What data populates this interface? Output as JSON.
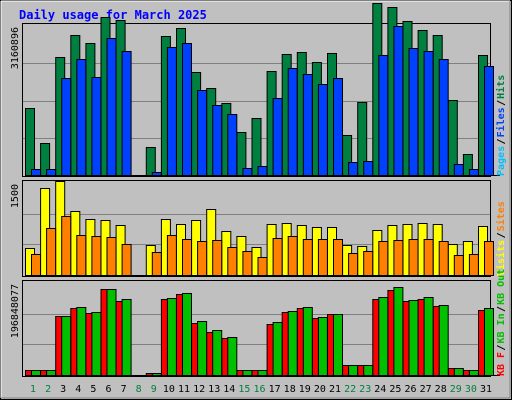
{
  "title": "Daily usage for March 2025",
  "colors": {
    "background": "#C0C0C0",
    "gridline": "#808080",
    "pages": "#00C0FF",
    "files": "#0040FF",
    "hits": "#008040",
    "visits": "#FFFF00",
    "sites": "#FF8000",
    "kb_in": "#00C000",
    "kb_out": "#FF0000",
    "title": "#0000FF",
    "weekday_tick": "#000000",
    "weekend_tick": "#008040"
  },
  "chart_data": [
    {
      "type": "bar",
      "panel": "requests",
      "categories": [
        "1",
        "2",
        "3",
        "4",
        "5",
        "6",
        "7",
        "8",
        "9",
        "10",
        "11",
        "12",
        "13",
        "14",
        "15",
        "16",
        "17",
        "18",
        "19",
        "20",
        "21",
        "22",
        "23",
        "24",
        "25",
        "26",
        "27",
        "28",
        "29",
        "30",
        "31"
      ],
      "weekend_days": [
        "1",
        "2",
        "8",
        "9",
        "15",
        "16",
        "22",
        "23",
        "29",
        "30"
      ],
      "scale_label": "3160896",
      "ymax": 3160896,
      "legend": [
        "Pages",
        "/",
        "Files",
        "/",
        "Hits"
      ],
      "series": [
        {
          "name": "Hits",
          "values": [
            1420000,
            670000,
            2510000,
            2970000,
            2800000,
            3360000,
            3290000,
            0,
            600000,
            2940000,
            3120000,
            2190000,
            1840000,
            1520000,
            920000,
            1200000,
            2200000,
            2560000,
            2600000,
            2400000,
            2580000,
            840000,
            1550000,
            3640000,
            3560000,
            3260000,
            3070000,
            2970000,
            1590000,
            450000,
            2540000
          ]
        },
        {
          "name": "Files",
          "values": [
            120000,
            120000,
            2050000,
            2470000,
            2080000,
            2900000,
            2620000,
            0,
            60000,
            2710000,
            2790000,
            1800000,
            1480000,
            1300000,
            150000,
            190000,
            1630000,
            2260000,
            2140000,
            1940000,
            2060000,
            270000,
            290000,
            2540000,
            3170000,
            2690000,
            2620000,
            2470000,
            230000,
            120000,
            2310000
          ]
        },
        {
          "name": "Pages",
          "values": [
            0,
            0,
            0,
            0,
            0,
            0,
            0,
            0,
            0,
            0,
            0,
            0,
            0,
            0,
            0,
            0,
            0,
            0,
            0,
            0,
            0,
            0,
            0,
            0,
            0,
            0,
            0,
            0,
            0,
            0,
            0
          ]
        }
      ]
    },
    {
      "type": "bar",
      "panel": "visitors",
      "categories": [
        "1",
        "2",
        "3",
        "4",
        "5",
        "6",
        "7",
        "8",
        "9",
        "10",
        "11",
        "12",
        "13",
        "14",
        "15",
        "16",
        "17",
        "18",
        "19",
        "20",
        "21",
        "22",
        "23",
        "24",
        "25",
        "26",
        "27",
        "28",
        "29",
        "30",
        "31"
      ],
      "scale_label": "1500",
      "ymax": 1500,
      "legend": [
        "Visits",
        "/",
        "Sites"
      ],
      "series": [
        {
          "name": "Visits",
          "values": [
            440,
            1420,
            1540,
            1040,
            920,
            890,
            810,
            0,
            490,
            920,
            830,
            900,
            1070,
            720,
            640,
            460,
            830,
            840,
            820,
            780,
            790,
            490,
            480,
            740,
            810,
            830,
            850,
            830,
            510,
            550,
            800
          ]
        },
        {
          "name": "Sites",
          "values": [
            350,
            770,
            970,
            660,
            630,
            620,
            500,
            0,
            370,
            660,
            580,
            560,
            570,
            460,
            390,
            300,
            610,
            630,
            580,
            580,
            580,
            360,
            390,
            560,
            570,
            590,
            590,
            550,
            330,
            350,
            560
          ]
        }
      ]
    },
    {
      "type": "bar",
      "panel": "bandwidth",
      "categories": [
        "1",
        "2",
        "3",
        "4",
        "5",
        "6",
        "7",
        "8",
        "9",
        "10",
        "11",
        "12",
        "13",
        "14",
        "15",
        "16",
        "17",
        "18",
        "19",
        "20",
        "21",
        "22",
        "23",
        "24",
        "25",
        "26",
        "27",
        "28",
        "29",
        "30",
        "31"
      ],
      "scale_label": "196848077",
      "ymax": 196848077,
      "legend": [
        "KB F",
        "/",
        "KB In",
        "/",
        "KB Out"
      ],
      "series": [
        {
          "name": "KB Out",
          "values": [
            9660000,
            9660000,
            126000000,
            143000000,
            132000000,
            185000000,
            159000000,
            0,
            4000000,
            163000000,
            173000000,
            112000000,
            93000000,
            79000000,
            11000000,
            11000000,
            110000000,
            134000000,
            143000000,
            121000000,
            131000000,
            21000000,
            21000000,
            162000000,
            182000000,
            158000000,
            162000000,
            147000000,
            15600000,
            11000000,
            140000000
          ]
        },
        {
          "name": "KB In",
          "values": [
            9660000,
            9660000,
            126000000,
            146000000,
            135000000,
            185000000,
            162000000,
            0,
            4000000,
            165000000,
            175000000,
            115000000,
            96000000,
            81000000,
            11000000,
            11000000,
            113000000,
            137000000,
            146000000,
            124000000,
            131000000,
            21000000,
            21000000,
            166000000,
            189000000,
            161000000,
            166000000,
            150000000,
            15600000,
            11000000,
            143000000
          ]
        },
        {
          "name": "KB F",
          "values": [
            0,
            0,
            0,
            0,
            0,
            0,
            0,
            0,
            0,
            0,
            0,
            0,
            0,
            0,
            0,
            0,
            0,
            0,
            0,
            0,
            0,
            0,
            0,
            0,
            0,
            0,
            0,
            0,
            0,
            0,
            0
          ]
        }
      ]
    }
  ]
}
